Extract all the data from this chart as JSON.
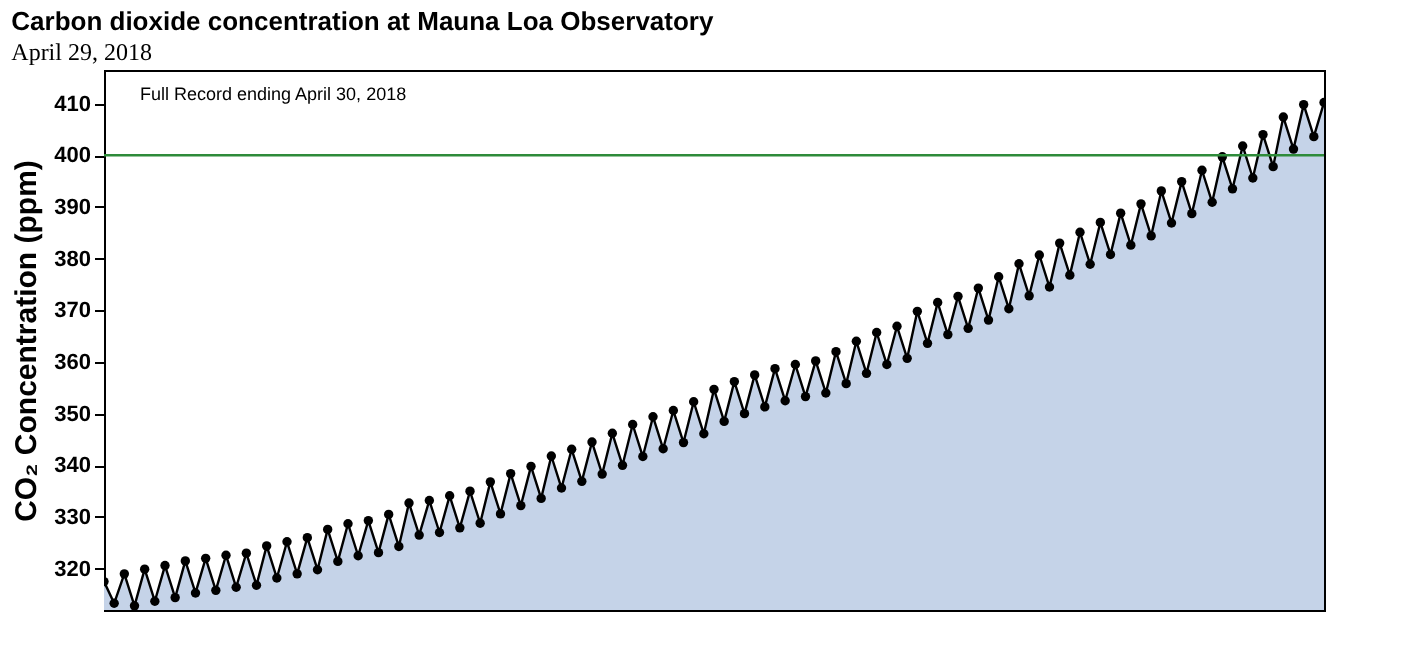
{
  "chart_data": {
    "type": "area",
    "title": "Carbon dioxide concentration at Mauna Loa Observatory",
    "ylabel": "CO₂ Concentration (ppm)",
    "annotations": [
      "April 29, 2018",
      "Full Record ending April 30, 2018"
    ],
    "categories": [
      null,
      null,
      null,
      null,
      null,
      null,
      null,
      null,
      null,
      null,
      null,
      null,
      null,
      null,
      null,
      null,
      null,
      null,
      null,
      null,
      null,
      null,
      null,
      null,
      null,
      null,
      null,
      null,
      null,
      null,
      null,
      null,
      null,
      null,
      null,
      null,
      null,
      null,
      null,
      null,
      null,
      null,
      null,
      null,
      null,
      null,
      null,
      null,
      null,
      null,
      null,
      null,
      null,
      null,
      null,
      null,
      null,
      null,
      null,
      null,
      null,
      null,
      null,
      null,
      null,
      null,
      null,
      null,
      null,
      null,
      null,
      null,
      null,
      null,
      null,
      null,
      null,
      null,
      null,
      null,
      null,
      null,
      null,
      null,
      null,
      null,
      null,
      null,
      null,
      null,
      null,
      null,
      null,
      null,
      null,
      null,
      null,
      null,
      null,
      null,
      null,
      null,
      null,
      null,
      null,
      null,
      null,
      null,
      null,
      null,
      null,
      null,
      null,
      null,
      null,
      null,
      null,
      null,
      null,
      null,
      null
    ],
    "ylim": [
      312,
      416.5
    ],
    "yticks": [
      320,
      330,
      340,
      350,
      360,
      370,
      380,
      390,
      400,
      410
    ],
    "tick_labels": "y",
    "grid": false,
    "marker": "circle",
    "line_style": "solid",
    "ref_lines": [
      {
        "axis": "y",
        "value": 400,
        "color": "#2e8b3a"
      }
    ],
    "series": [
      {
        "color": "#000000",
        "values": [
          317.5,
          313.3,
          319.0,
          312.8,
          319.9,
          313.7,
          320.6,
          314.4,
          321.5,
          315.3,
          322.0,
          315.8,
          322.6,
          316.4,
          323.0,
          316.8,
          324.4,
          318.2,
          325.2,
          319.0,
          326.0,
          319.8,
          327.6,
          321.4,
          328.7,
          322.5,
          329.3,
          323.1,
          330.5,
          324.3,
          332.7,
          326.5,
          333.2,
          327.0,
          334.1,
          327.9,
          335.0,
          328.8,
          336.8,
          330.6,
          338.4,
          332.2,
          339.8,
          333.6,
          341.8,
          335.6,
          343.1,
          336.9,
          344.5,
          338.3,
          346.2,
          340.0,
          347.9,
          341.7,
          349.4,
          343.2,
          350.6,
          344.4,
          352.3,
          346.1,
          354.7,
          348.5,
          356.2,
          350.0,
          357.5,
          351.3,
          358.7,
          352.5,
          359.5,
          353.3,
          360.2,
          354.0,
          362.0,
          355.8,
          364.0,
          357.8,
          365.7,
          359.5,
          366.9,
          360.7,
          369.8,
          363.6,
          371.5,
          365.3,
          372.7,
          366.5,
          374.3,
          368.1,
          376.5,
          370.3,
          379.0,
          372.8,
          380.7,
          374.5,
          383.0,
          376.8,
          385.1,
          378.9,
          387.0,
          380.8,
          388.8,
          382.6,
          390.6,
          384.4,
          393.1,
          386.9,
          394.9,
          388.7,
          397.1,
          390.9,
          399.7,
          393.5,
          401.8,
          395.6,
          404.0,
          397.8,
          407.4,
          401.2,
          409.8,
          403.6,
          410.2
        ]
      }
    ]
  }
}
